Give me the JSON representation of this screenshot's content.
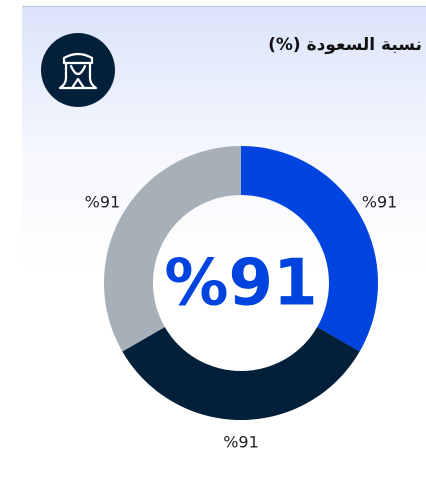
{
  "chart_data": {
    "type": "pie",
    "title": "نسبة السعودة (%)",
    "center_label": "%91",
    "values": [
      91,
      91,
      91
    ],
    "value_labels": [
      "%91",
      "%91",
      "%91"
    ],
    "colors": [
      "#0044e0",
      "#03203a",
      "#a7b0b8"
    ],
    "donut": true
  }
}
